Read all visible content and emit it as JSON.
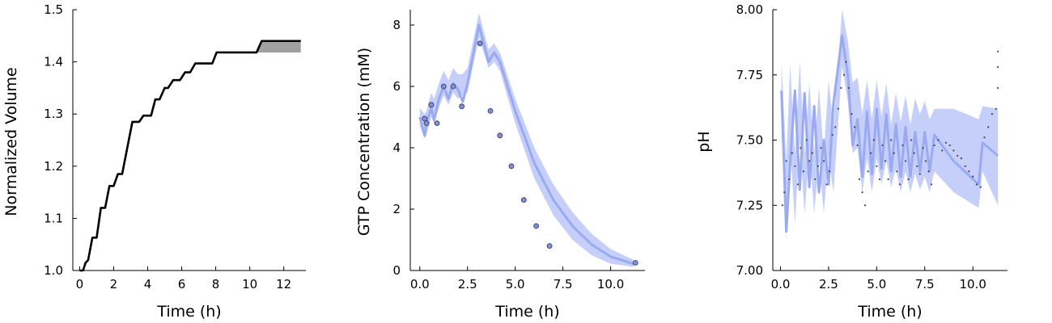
{
  "chart_data": [
    {
      "type": "line",
      "xlabel": "Time (h)",
      "ylabel": "Normalized Volume",
      "xlim": [
        -0.4,
        13.3
      ],
      "ylim": [
        1.0,
        1.5
      ],
      "xticks": [
        {
          "v": 0,
          "label": "0"
        },
        {
          "v": 2,
          "label": "2"
        },
        {
          "v": 4,
          "label": "4"
        },
        {
          "v": 6,
          "label": "6"
        },
        {
          "v": 8,
          "label": "8"
        },
        {
          "v": 10,
          "label": "10"
        },
        {
          "v": 12,
          "label": "12"
        }
      ],
      "yticks": [
        {
          "v": 1.0,
          "label": "1.0"
        },
        {
          "v": 1.1,
          "label": "1.1"
        },
        {
          "v": 1.2,
          "label": "1.2"
        },
        {
          "v": 1.3,
          "label": "1.3"
        },
        {
          "v": 1.4,
          "label": "1.4"
        },
        {
          "v": 1.5,
          "label": "1.5"
        }
      ],
      "grid": false,
      "colors": {
        "line": "#000000",
        "band": "#a0a0a0"
      },
      "series": [
        {
          "kind": "line",
          "points": [
            [
              0,
              1.0
            ],
            [
              0.2,
              1.0
            ],
            [
              0.35,
              1.015
            ],
            [
              0.5,
              1.02
            ],
            [
              0.75,
              1.063
            ],
            [
              1.0,
              1.063
            ],
            [
              1.25,
              1.12
            ],
            [
              1.5,
              1.12
            ],
            [
              1.75,
              1.162
            ],
            [
              2.0,
              1.162
            ],
            [
              2.25,
              1.185
            ],
            [
              2.5,
              1.185
            ],
            [
              3.1,
              1.285
            ],
            [
              3.5,
              1.285
            ],
            [
              3.75,
              1.297
            ],
            [
              4.2,
              1.297
            ],
            [
              4.45,
              1.328
            ],
            [
              4.7,
              1.328
            ],
            [
              5.0,
              1.35
            ],
            [
              5.2,
              1.35
            ],
            [
              5.5,
              1.365
            ],
            [
              5.9,
              1.365
            ],
            [
              6.2,
              1.38
            ],
            [
              6.5,
              1.38
            ],
            [
              6.8,
              1.397
            ],
            [
              7.8,
              1.397
            ],
            [
              8.05,
              1.418
            ],
            [
              10.4,
              1.418
            ],
            [
              10.7,
              1.44
            ],
            [
              13.0,
              1.44
            ]
          ]
        },
        {
          "kind": "band",
          "x": [
            10.4,
            10.7,
            13.0
          ],
          "upper": [
            1.418,
            1.44,
            1.44
          ],
          "lower": [
            1.418,
            1.418,
            1.418
          ]
        }
      ]
    },
    {
      "type": "line",
      "xlabel": "Time (h)",
      "ylabel": "GTP Concentration (mM)",
      "xlim": [
        -0.5,
        11.8
      ],
      "ylim": [
        0,
        8.5
      ],
      "xticks": [
        {
          "v": 0,
          "label": "0.0"
        },
        {
          "v": 2.5,
          "label": "2.5"
        },
        {
          "v": 5,
          "label": "5.0"
        },
        {
          "v": 7.5,
          "label": "7.5"
        },
        {
          "v": 10,
          "label": "10.0"
        }
      ],
      "yticks": [
        {
          "v": 0,
          "label": "0"
        },
        {
          "v": 2,
          "label": "2"
        },
        {
          "v": 4,
          "label": "4"
        },
        {
          "v": 6,
          "label": "6"
        },
        {
          "v": 8,
          "label": "8"
        }
      ],
      "grid": false,
      "colors": {
        "line": "#9aaaf0",
        "band": "#c6cffa",
        "marker": "#8090d8",
        "marker_edge": "#333355"
      },
      "series": [
        {
          "kind": "band",
          "x": [
            0,
            0.25,
            0.35,
            0.6,
            0.75,
            1.0,
            1.25,
            1.5,
            1.75,
            2.0,
            2.25,
            2.5,
            3.1,
            3.6,
            3.9,
            4.2,
            5.0,
            6.0,
            7.0,
            8.0,
            9.0,
            10.0,
            11.2
          ],
          "upper": [
            5.3,
            5.1,
            5.2,
            5.8,
            5.6,
            6.1,
            6.5,
            6.2,
            6.6,
            6.4,
            6.4,
            6.6,
            8.4,
            7.2,
            7.4,
            7.1,
            5.6,
            4.0,
            2.8,
            1.9,
            1.2,
            0.7,
            0.35
          ],
          "lower": [
            4.7,
            4.3,
            4.4,
            5.0,
            4.8,
            5.3,
            5.7,
            5.4,
            5.8,
            5.6,
            5.7,
            5.8,
            7.6,
            6.6,
            6.8,
            6.5,
            4.8,
            3.0,
            1.8,
            1.0,
            0.5,
            0.22,
            0.12
          ]
        },
        {
          "kind": "line",
          "points": [
            [
              0,
              5.0
            ],
            [
              0.25,
              4.4
            ],
            [
              0.35,
              4.8
            ],
            [
              0.6,
              5.3
            ],
            [
              0.75,
              4.9
            ],
            [
              1.0,
              5.6
            ],
            [
              1.25,
              6.0
            ],
            [
              1.5,
              5.6
            ],
            [
              1.75,
              6.1
            ],
            [
              2.0,
              5.9
            ],
            [
              2.25,
              5.5
            ],
            [
              2.5,
              6.1
            ],
            [
              3.1,
              8.0
            ],
            [
              3.6,
              6.8
            ],
            [
              3.9,
              7.1
            ],
            [
              4.2,
              6.8
            ],
            [
              5.0,
              5.2
            ],
            [
              6.0,
              3.5
            ],
            [
              7.0,
              2.3
            ],
            [
              8.0,
              1.45
            ],
            [
              9.0,
              0.85
            ],
            [
              10.0,
              0.45
            ],
            [
              11.2,
              0.22
            ]
          ]
        },
        {
          "kind": "scatter",
          "points": [
            [
              0.25,
              4.95
            ],
            [
              0.35,
              4.8
            ],
            [
              0.6,
              5.4
            ],
            [
              0.9,
              4.8
            ],
            [
              1.25,
              6.0
            ],
            [
              1.75,
              6.0
            ],
            [
              2.2,
              5.35
            ],
            [
              3.15,
              7.4
            ],
            [
              3.7,
              5.2
            ],
            [
              4.2,
              4.4
            ],
            [
              4.8,
              3.4
            ],
            [
              5.45,
              2.3
            ],
            [
              6.1,
              1.45
            ],
            [
              6.8,
              0.8
            ],
            [
              11.3,
              0.25
            ]
          ]
        }
      ]
    },
    {
      "type": "line",
      "xlabel": "Time (h)",
      "ylabel": "pH",
      "xlim": [
        -0.4,
        11.8
      ],
      "ylim": [
        7.0,
        8.0
      ],
      "xticks": [
        {
          "v": 0,
          "label": "0.0"
        },
        {
          "v": 2.5,
          "label": "2.5"
        },
        {
          "v": 5,
          "label": "5.0"
        },
        {
          "v": 7.5,
          "label": "7.5"
        },
        {
          "v": 10,
          "label": "10.0"
        }
      ],
      "yticks": [
        {
          "v": 7.0,
          "label": "7.00"
        },
        {
          "v": 7.25,
          "label": "7.25"
        },
        {
          "v": 7.5,
          "label": "7.50"
        },
        {
          "v": 7.75,
          "label": "7.75"
        },
        {
          "v": 8.0,
          "label": "8.00"
        }
      ],
      "grid": false,
      "colors": {
        "line": "#9aaaf0",
        "band": "#c6cffa",
        "marker": "#444444"
      },
      "series": [
        {
          "kind": "band",
          "x": [
            0.05,
            0.3,
            0.5,
            0.75,
            1.0,
            1.25,
            1.5,
            1.75,
            2.0,
            2.25,
            2.5,
            2.75,
            3.2,
            3.5,
            3.75,
            4.0,
            4.25,
            4.5,
            4.75,
            5.0,
            5.25,
            5.5,
            5.75,
            6.0,
            6.25,
            6.5,
            6.75,
            7.0,
            7.25,
            7.5,
            7.75,
            8.0,
            9.0,
            10.3,
            10.5,
            11.3
          ],
          "upper": [
            7.8,
            7.42,
            7.79,
            7.45,
            7.8,
            7.45,
            7.72,
            7.45,
            7.7,
            7.45,
            7.73,
            7.55,
            8.0,
            7.88,
            7.72,
            7.74,
            7.6,
            7.73,
            7.58,
            7.73,
            7.59,
            7.72,
            7.56,
            7.68,
            7.57,
            7.67,
            7.56,
            7.66,
            7.6,
            7.65,
            7.58,
            7.62,
            7.62,
            7.58,
            7.63,
            7.62
          ],
          "lower": [
            7.55,
            7.12,
            7.48,
            7.18,
            7.5,
            7.22,
            7.46,
            7.22,
            7.42,
            7.22,
            7.44,
            7.3,
            7.78,
            7.65,
            7.45,
            7.47,
            7.3,
            7.43,
            7.3,
            7.43,
            7.33,
            7.42,
            7.32,
            7.39,
            7.3,
            7.38,
            7.3,
            7.37,
            7.31,
            7.36,
            7.3,
            7.38,
            7.3,
            7.24,
            7.38,
            7.25
          ]
        },
        {
          "kind": "line",
          "points": [
            [
              0.05,
              7.69
            ],
            [
              0.3,
              7.15
            ],
            [
              0.5,
              7.41
            ],
            [
              0.75,
              7.69
            ],
            [
              1.0,
              7.31
            ],
            [
              1.25,
              7.68
            ],
            [
              1.5,
              7.32
            ],
            [
              1.75,
              7.63
            ],
            [
              2.0,
              7.3
            ],
            [
              2.25,
              7.5
            ],
            [
              2.5,
              7.33
            ],
            [
              2.75,
              7.64
            ],
            [
              3.2,
              7.9
            ],
            [
              3.5,
              7.75
            ],
            [
              3.75,
              7.48
            ],
            [
              4.0,
              7.58
            ],
            [
              4.25,
              7.36
            ],
            [
              4.5,
              7.61
            ],
            [
              4.75,
              7.37
            ],
            [
              5.0,
              7.62
            ],
            [
              5.25,
              7.39
            ],
            [
              5.5,
              7.6
            ],
            [
              5.75,
              7.38
            ],
            [
              6.0,
              7.56
            ],
            [
              6.25,
              7.36
            ],
            [
              6.5,
              7.55
            ],
            [
              6.75,
              7.36
            ],
            [
              7.0,
              7.53
            ],
            [
              7.25,
              7.38
            ],
            [
              7.5,
              7.53
            ],
            [
              7.75,
              7.38
            ],
            [
              8.0,
              7.52
            ],
            [
              9.0,
              7.42
            ],
            [
              10.3,
              7.33
            ],
            [
              10.5,
              7.49
            ],
            [
              11.3,
              7.44
            ]
          ]
        },
        {
          "kind": "scatter",
          "points": [
            [
              0.1,
              7.25
            ],
            [
              0.2,
              7.3
            ],
            [
              0.3,
              7.42
            ],
            [
              0.45,
              7.35
            ],
            [
              0.6,
              7.45
            ],
            [
              0.75,
              7.4
            ],
            [
              0.9,
              7.33
            ],
            [
              1.05,
              7.47
            ],
            [
              1.2,
              7.38
            ],
            [
              1.35,
              7.5
            ],
            [
              1.5,
              7.42
            ],
            [
              1.65,
              7.45
            ],
            [
              1.8,
              7.35
            ],
            [
              1.95,
              7.4
            ],
            [
              2.1,
              7.47
            ],
            [
              2.25,
              7.42
            ],
            [
              2.4,
              7.33
            ],
            [
              2.55,
              7.38
            ],
            [
              2.7,
              7.52
            ],
            [
              2.85,
              7.55
            ],
            [
              3.0,
              7.62
            ],
            [
              3.15,
              7.7
            ],
            [
              3.3,
              7.75
            ],
            [
              3.4,
              7.8
            ],
            [
              3.55,
              7.7
            ],
            [
              3.7,
              7.6
            ],
            [
              3.85,
              7.55
            ],
            [
              4.0,
              7.48
            ],
            [
              4.1,
              7.35
            ],
            [
              4.25,
              7.3
            ],
            [
              4.4,
              7.25
            ],
            [
              4.55,
              7.38
            ],
            [
              4.7,
              7.45
            ],
            [
              4.85,
              7.5
            ],
            [
              5.0,
              7.4
            ],
            [
              5.15,
              7.35
            ],
            [
              5.3,
              7.48
            ],
            [
              5.45,
              7.42
            ],
            [
              5.6,
              7.35
            ],
            [
              5.75,
              7.5
            ],
            [
              5.9,
              7.45
            ],
            [
              6.05,
              7.38
            ],
            [
              6.2,
              7.33
            ],
            [
              6.35,
              7.48
            ],
            [
              6.5,
              7.42
            ],
            [
              6.65,
              7.35
            ],
            [
              6.8,
              7.5
            ],
            [
              6.95,
              7.45
            ],
            [
              7.1,
              7.4
            ],
            [
              7.25,
              7.37
            ],
            [
              7.4,
              7.47
            ],
            [
              7.55,
              7.42
            ],
            [
              7.7,
              7.38
            ],
            [
              7.85,
              7.33
            ],
            [
              8.0,
              7.48
            ],
            [
              8.2,
              7.5
            ],
            [
              8.4,
              7.46
            ],
            [
              8.6,
              7.49
            ],
            [
              8.8,
              7.48
            ],
            [
              9.0,
              7.46
            ],
            [
              9.2,
              7.44
            ],
            [
              9.4,
              7.43
            ],
            [
              9.6,
              7.4
            ],
            [
              9.8,
              7.38
            ],
            [
              10.0,
              7.36
            ],
            [
              10.2,
              7.33
            ],
            [
              10.4,
              7.32
            ],
            [
              10.6,
              7.51
            ],
            [
              10.8,
              7.55
            ],
            [
              11.0,
              7.6
            ],
            [
              11.2,
              7.62
            ],
            [
              11.3,
              7.7
            ],
            [
              11.3,
              7.78
            ],
            [
              11.3,
              7.84
            ]
          ]
        }
      ]
    }
  ]
}
